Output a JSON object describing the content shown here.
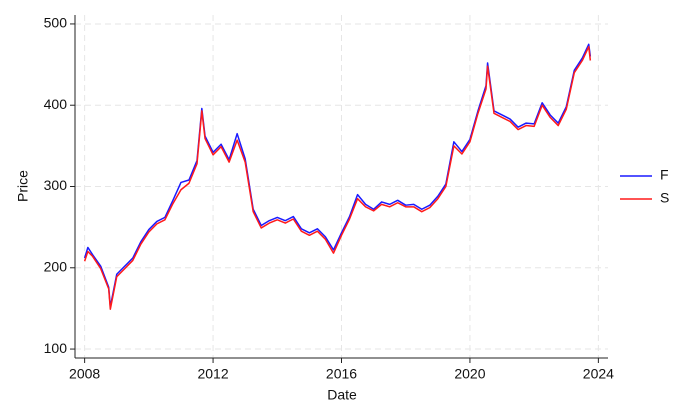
{
  "chart_data": {
    "type": "line",
    "x_label": "Date",
    "y_label": "Price",
    "x": [
      2008.0,
      2008.1,
      2008.25,
      2008.5,
      2008.75,
      2008.8,
      2009.0,
      2009.25,
      2009.5,
      2009.75,
      2010.0,
      2010.25,
      2010.5,
      2010.75,
      2011.0,
      2011.25,
      2011.5,
      2011.65,
      2011.75,
      2012.0,
      2012.25,
      2012.5,
      2012.75,
      2013.0,
      2013.25,
      2013.5,
      2013.75,
      2014.0,
      2014.25,
      2014.5,
      2014.75,
      2015.0,
      2015.25,
      2015.5,
      2015.75,
      2016.0,
      2016.25,
      2016.5,
      2016.75,
      2017.0,
      2017.25,
      2017.5,
      2017.75,
      2018.0,
      2018.25,
      2018.5,
      2018.75,
      2019.0,
      2019.25,
      2019.5,
      2019.75,
      2020.0,
      2020.25,
      2020.5,
      2020.55,
      2020.75,
      2021.0,
      2021.25,
      2021.5,
      2021.75,
      2022.0,
      2022.25,
      2022.5,
      2022.75,
      2023.0,
      2023.25,
      2023.5,
      2023.7,
      2023.75
    ],
    "series": [
      {
        "name": "F",
        "color": "#1a1aff",
        "values": [
          212,
          225,
          216,
          202,
          176,
          152,
          192,
          202,
          212,
          232,
          247,
          257,
          262,
          283,
          305,
          308,
          332,
          396,
          362,
          342,
          352,
          333,
          365,
          334,
          272,
          252,
          258,
          262,
          258,
          263,
          248,
          243,
          248,
          238,
          222,
          243,
          263,
          290,
          278,
          272,
          281,
          278,
          283,
          277,
          278,
          272,
          277,
          288,
          303,
          355,
          343,
          358,
          393,
          424,
          452,
          393,
          388,
          383,
          373,
          378,
          377,
          403,
          388,
          378,
          398,
          443,
          458,
          475,
          460
        ]
      },
      {
        "name": "S",
        "color": "#ff1a1a",
        "values": [
          208,
          220,
          214,
          199,
          174,
          149,
          189,
          199,
          209,
          229,
          244,
          254,
          259,
          279,
          296,
          304,
          328,
          393,
          359,
          339,
          349,
          330,
          357,
          330,
          269,
          249,
          255,
          259,
          255,
          260,
          245,
          240,
          245,
          235,
          218,
          240,
          260,
          285,
          275,
          270,
          278,
          275,
          280,
          275,
          275,
          269,
          274,
          285,
          300,
          350,
          340,
          355,
          390,
          420,
          448,
          390,
          385,
          380,
          370,
          375,
          374,
          400,
          385,
          375,
          395,
          440,
          455,
          472,
          455
        ]
      }
    ],
    "xlim": [
      2007.7,
      2024.3
    ],
    "xticks": [
      2008,
      2012,
      2016,
      2020,
      2024
    ],
    "ylim": [
      89,
      511
    ],
    "yticks": [
      100,
      200,
      300,
      400,
      500
    ],
    "grid": true,
    "legend": "right"
  }
}
